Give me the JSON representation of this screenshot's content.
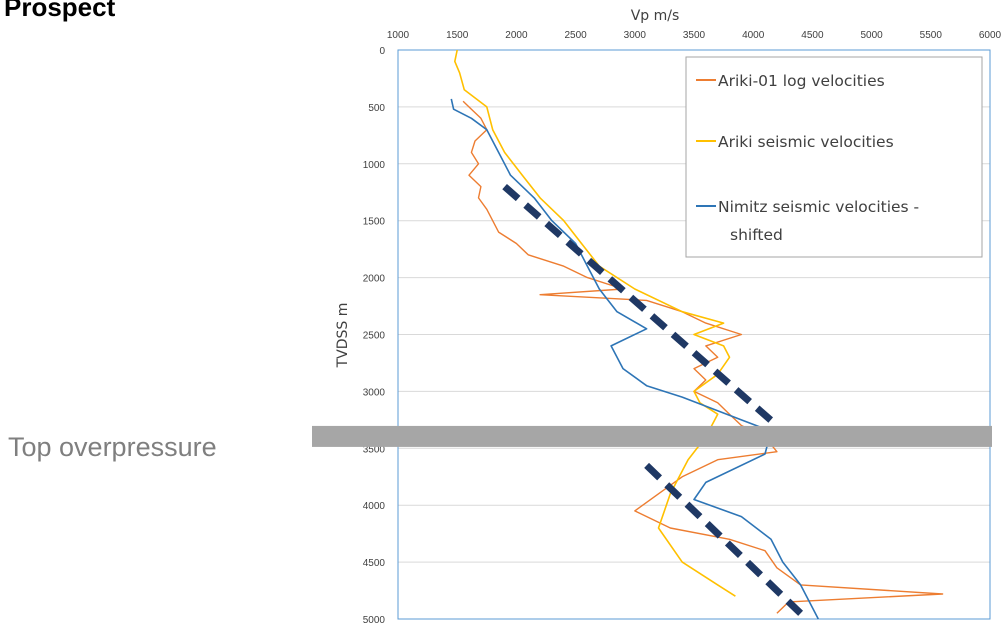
{
  "page": {
    "title": "Prospect"
  },
  "annotation": {
    "text": "Top overpressure",
    "depth": 3400
  },
  "colors": {
    "log": "#ED7D31",
    "ariki": "#FFC000",
    "nimitz": "#2E75B6",
    "trend": "#1F3864",
    "band": "#A6A6A6",
    "grid": "#D9D9D9",
    "frame": "#5B9BD5"
  },
  "chart_data": {
    "type": "line",
    "xlabel": "Vp m/s",
    "ylabel": "TVDSS m",
    "xlim": [
      1000,
      6000
    ],
    "ylim": [
      0,
      5000
    ],
    "y_inverted": true,
    "x_axis_position": "top",
    "x_ticks": [
      "1000",
      "1500",
      "2000",
      "2500",
      "3000",
      "3500",
      "4000",
      "4500",
      "5000",
      "5500",
      "6000"
    ],
    "y_ticks": [
      "0",
      "500",
      "1000",
      "1500",
      "2000",
      "2500",
      "3000",
      "3500",
      "4000",
      "4500",
      "5000"
    ],
    "grid": true,
    "legend_position": "top-right",
    "legend": [
      {
        "name": "Ariki-01 log velocities",
        "color": "#ED7D31"
      },
      {
        "name": "Ariki seismic velocities",
        "color": "#FFC000"
      },
      {
        "name": "Nimitz seismic velocities -",
        "name2": "shifted",
        "color": "#2E75B6"
      }
    ],
    "series": [
      {
        "name": "Ariki-01 log velocities",
        "points": [
          [
            1550,
            450
          ],
          [
            1620,
            520
          ],
          [
            1700,
            600
          ],
          [
            1750,
            700
          ],
          [
            1650,
            800
          ],
          [
            1620,
            900
          ],
          [
            1680,
            1000
          ],
          [
            1600,
            1100
          ],
          [
            1700,
            1200
          ],
          [
            1680,
            1300
          ],
          [
            1750,
            1400
          ],
          [
            1800,
            1500
          ],
          [
            1850,
            1600
          ],
          [
            2000,
            1700
          ],
          [
            2100,
            1800
          ],
          [
            2400,
            1900
          ],
          [
            2600,
            2000
          ],
          [
            2900,
            2100
          ],
          [
            2200,
            2150
          ],
          [
            3100,
            2200
          ],
          [
            3400,
            2300
          ],
          [
            3600,
            2400
          ],
          [
            3900,
            2500
          ],
          [
            3600,
            2600
          ],
          [
            3700,
            2700
          ],
          [
            3500,
            2800
          ],
          [
            3600,
            2900
          ],
          [
            3500,
            3000
          ],
          [
            3700,
            3100
          ],
          [
            3800,
            3200
          ],
          [
            3900,
            3300
          ],
          [
            4100,
            3400
          ],
          [
            4200,
            3530
          ],
          [
            3700,
            3600
          ],
          [
            3400,
            3750
          ],
          [
            3200,
            3900
          ],
          [
            3000,
            4050
          ],
          [
            3300,
            4200
          ],
          [
            3800,
            4300
          ],
          [
            4100,
            4400
          ],
          [
            4200,
            4550
          ],
          [
            4400,
            4700
          ],
          [
            5600,
            4780
          ],
          [
            4300,
            4850
          ],
          [
            4200,
            4950
          ]
        ]
      },
      {
        "name": "Ariki seismic velocities",
        "points": [
          [
            1500,
            0
          ],
          [
            1480,
            100
          ],
          [
            1520,
            200
          ],
          [
            1560,
            350
          ],
          [
            1750,
            500
          ],
          [
            1800,
            700
          ],
          [
            1900,
            900
          ],
          [
            2050,
            1100
          ],
          [
            2200,
            1300
          ],
          [
            2400,
            1500
          ],
          [
            2550,
            1700
          ],
          [
            2700,
            1900
          ],
          [
            3000,
            2100
          ],
          [
            3400,
            2300
          ],
          [
            3750,
            2400
          ],
          [
            3500,
            2500
          ],
          [
            3750,
            2600
          ],
          [
            3800,
            2700
          ],
          [
            3700,
            2850
          ],
          [
            3500,
            3000
          ],
          [
            3550,
            3100
          ],
          [
            3700,
            3200
          ],
          [
            3600,
            3400
          ],
          [
            3450,
            3600
          ],
          [
            3300,
            3900
          ],
          [
            3200,
            4200
          ],
          [
            3400,
            4500
          ],
          [
            3700,
            4700
          ],
          [
            3850,
            4800
          ]
        ]
      },
      {
        "name": "Nimitz seismic velocities - shifted",
        "points": [
          [
            1450,
            430
          ],
          [
            1470,
            520
          ],
          [
            1620,
            600
          ],
          [
            1750,
            700
          ],
          [
            1850,
            900
          ],
          [
            1950,
            1100
          ],
          [
            2150,
            1300
          ],
          [
            2300,
            1500
          ],
          [
            2500,
            1700
          ],
          [
            2600,
            1900
          ],
          [
            2700,
            2100
          ],
          [
            2850,
            2300
          ],
          [
            3100,
            2450
          ],
          [
            2800,
            2600
          ],
          [
            2900,
            2800
          ],
          [
            3100,
            2950
          ],
          [
            3400,
            3050
          ],
          [
            3650,
            3150
          ],
          [
            3900,
            3250
          ],
          [
            4150,
            3350
          ],
          [
            4100,
            3550
          ],
          [
            3600,
            3800
          ],
          [
            3500,
            3950
          ],
          [
            3900,
            4100
          ],
          [
            4150,
            4300
          ],
          [
            4250,
            4500
          ],
          [
            4400,
            4700
          ],
          [
            4500,
            4900
          ],
          [
            4550,
            5000
          ]
        ]
      },
      {
        "name": "trend-upper",
        "dashed": true,
        "points": [
          [
            1900,
            1200
          ],
          [
            4200,
            3300
          ]
        ]
      },
      {
        "name": "trend-lower",
        "dashed": true,
        "points": [
          [
            3100,
            3650
          ],
          [
            4400,
            4950
          ]
        ]
      }
    ]
  }
}
